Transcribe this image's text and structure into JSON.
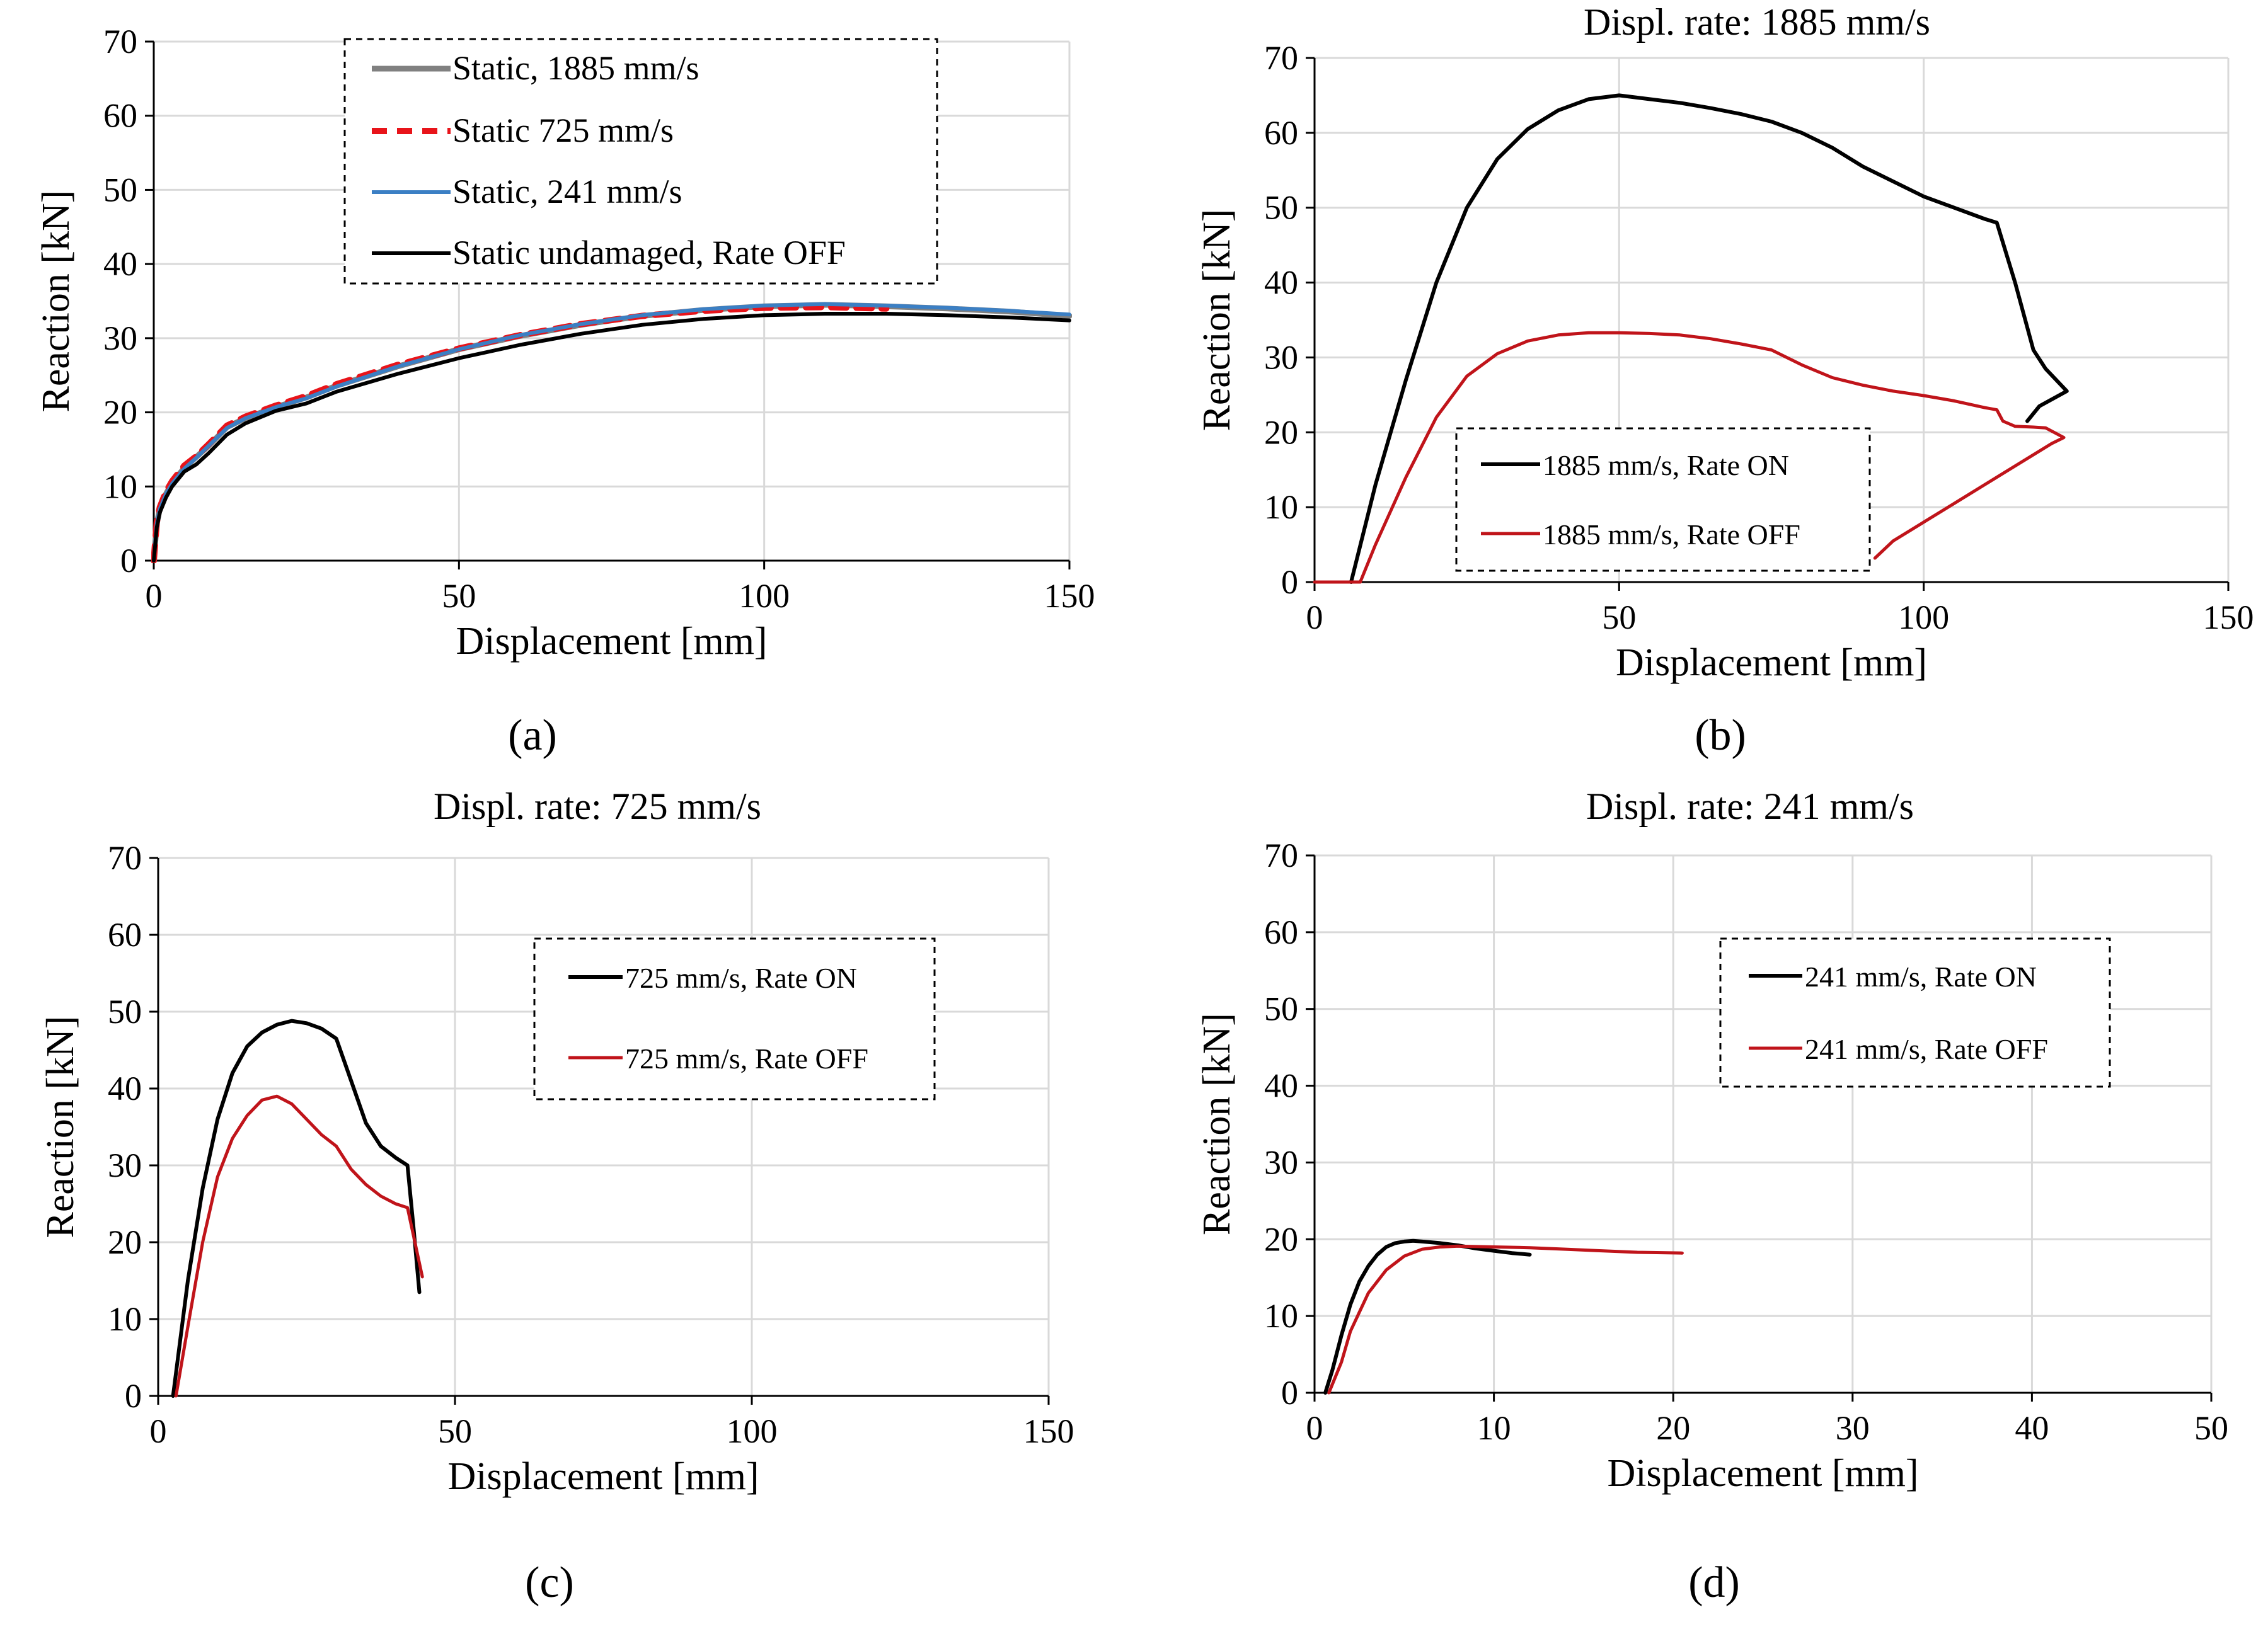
{
  "chart_data": [
    {
      "id": "a",
      "type": "line",
      "caption": "(a)",
      "title": "",
      "xlabel": "Displacement  [mm]",
      "ylabel": "Reaction [kN]",
      "xlim": [
        0,
        150
      ],
      "ylim": [
        0,
        70
      ],
      "xticks": [
        "0",
        "50",
        "100",
        "150"
      ],
      "yticks": [
        "0",
        "10",
        "20",
        "30",
        "40",
        "50",
        "60",
        "70"
      ],
      "grid": true,
      "legend_position": "top-center",
      "series": [
        {
          "name": "Static, 1885 mm/s",
          "color": "#808080",
          "dash": "",
          "width": 9,
          "x": [
            0,
            0.5,
            1,
            2,
            3,
            5,
            7,
            9,
            12,
            15,
            20,
            25,
            30,
            40,
            50,
            60,
            70,
            80,
            90,
            100,
            110,
            120,
            130,
            140,
            150
          ],
          "y": [
            0,
            5,
            7,
            9,
            10.5,
            12.5,
            14,
            15.5,
            18,
            19.2,
            20.7,
            22,
            23.6,
            26.2,
            28.5,
            30.3,
            31.8,
            33,
            33.8,
            34.3,
            34.5,
            34.3,
            34,
            33.6,
            33
          ]
        },
        {
          "name": "Static 725 mm/s",
          "color": "#e8141a",
          "dash": "24,16",
          "width": 10,
          "x": [
            0,
            0.5,
            1,
            2,
            3,
            5,
            7,
            9,
            12,
            15,
            20,
            25,
            30,
            40,
            50,
            60,
            70,
            80,
            90,
            100,
            110,
            120
          ],
          "y": [
            0,
            5.2,
            7.2,
            9.3,
            10.7,
            12.8,
            14.1,
            15.7,
            18.2,
            19.4,
            20.9,
            22.2,
            23.8,
            26.4,
            28.6,
            30.4,
            31.9,
            33,
            33.7,
            34.1,
            34.2,
            34
          ]
        },
        {
          "name": "Static, 241 mm/s",
          "color": "#3b7fc4",
          "dash": "",
          "width": 6,
          "x": [
            0,
            0.5,
            1,
            2,
            3,
            5,
            7,
            9,
            12,
            15,
            20,
            25,
            30,
            40,
            50,
            60,
            70,
            80,
            90,
            100,
            110,
            120,
            130,
            140,
            150
          ],
          "y": [
            0,
            5,
            7,
            9,
            10.4,
            12.4,
            13.9,
            15.5,
            17.9,
            19.2,
            20.7,
            21.9,
            23.5,
            26.2,
            28.5,
            30.4,
            31.9,
            33.1,
            33.9,
            34.4,
            34.6,
            34.4,
            34.1,
            33.7,
            33.2
          ]
        },
        {
          "name": "Static undamaged, Rate OFF",
          "color": "#000000",
          "dash": "",
          "width": 6,
          "x": [
            0,
            0.5,
            1,
            2,
            3,
            5,
            7,
            9,
            12,
            15,
            20,
            25,
            30,
            40,
            50,
            60,
            70,
            80,
            90,
            100,
            110,
            120,
            130,
            140,
            150
          ],
          "y": [
            0,
            4.5,
            6.5,
            8.5,
            10,
            12,
            13,
            14.5,
            17,
            18.5,
            20.2,
            21.2,
            22.8,
            25.2,
            27.3,
            29.1,
            30.6,
            31.8,
            32.6,
            33.1,
            33.3,
            33.3,
            33.1,
            32.8,
            32.4
          ]
        }
      ]
    },
    {
      "id": "b",
      "type": "line",
      "caption": "(b)",
      "title": "Displ. rate: 1885 mm/s",
      "xlabel": "Displacement  [mm]",
      "ylabel": "Reaction  [kN]",
      "xlim": [
        0,
        150
      ],
      "ylim": [
        0,
        70
      ],
      "xticks": [
        "0",
        "50",
        "100",
        "150"
      ],
      "yticks": [
        "0",
        "10",
        "20",
        "30",
        "40",
        "50",
        "60",
        "70"
      ],
      "grid": true,
      "legend_position": "bottom-center",
      "series": [
        {
          "name": "1885 mm/s, Rate ON",
          "color": "#000000",
          "dash": "",
          "width": 6,
          "x": [
            6,
            10,
            15,
            20,
            25,
            30,
            35,
            40,
            45,
            50,
            55,
            60,
            65,
            70,
            75,
            80,
            85,
            90,
            95,
            100,
            105,
            110,
            112,
            115,
            118,
            120,
            123.5,
            119,
            117
          ],
          "y": [
            0,
            13,
            27,
            40,
            50,
            56.5,
            60.5,
            63,
            64.5,
            65,
            64.5,
            64,
            63.3,
            62.5,
            61.5,
            60,
            58,
            55.5,
            53.5,
            51.5,
            50,
            48.5,
            48,
            40,
            31,
            28.5,
            25.5,
            23.5,
            21.5
          ]
        },
        {
          "name": "1885 mm/s, Rate OFF",
          "color": "#c0141a",
          "dash": "",
          "width": 5,
          "x": [
            0,
            7.5,
            10,
            15,
            20,
            25,
            30,
            35,
            40,
            45,
            50,
            55,
            60,
            65,
            70,
            75,
            80,
            85,
            90,
            95,
            100,
            105,
            110,
            112,
            113,
            115,
            118,
            120,
            123,
            121,
            115,
            110,
            105,
            100,
            95,
            92
          ],
          "y": [
            0,
            0,
            5,
            14,
            22,
            27.5,
            30.5,
            32.2,
            33,
            33.3,
            33.3,
            33.2,
            33,
            32.5,
            31.8,
            31,
            29,
            27.3,
            26.3,
            25.5,
            24.9,
            24.2,
            23.3,
            23,
            21.5,
            20.8,
            20.7,
            20.6,
            19.3,
            18.5,
            15.5,
            13,
            10.5,
            8,
            5.5,
            3.2
          ]
        }
      ]
    },
    {
      "id": "c",
      "type": "line",
      "caption": "(c)",
      "title": "Displ. rate: 725 mm/s",
      "xlabel": "Displacement  [mm]",
      "ylabel": "Reaction  [kN]",
      "xlim": [
        0,
        150
      ],
      "ylim": [
        0,
        70
      ],
      "xticks": [
        "0",
        "50",
        "100",
        "150"
      ],
      "yticks": [
        "0",
        "10",
        "20",
        "30",
        "40",
        "50",
        "60",
        "70"
      ],
      "grid": true,
      "legend_position": "top-right",
      "series": [
        {
          "name": "725 mm/s, Rate ON",
          "color": "#000000",
          "dash": "",
          "width": 6,
          "x": [
            2.5,
            5,
            7.5,
            10,
            12.5,
            15,
            17.5,
            20,
            22.5,
            25,
            27.5,
            30,
            32.5,
            35,
            37.5,
            40,
            42,
            43,
            44
          ],
          "y": [
            0,
            15,
            27,
            36,
            42,
            45.5,
            47.3,
            48.3,
            48.8,
            48.5,
            47.8,
            46.5,
            41,
            35.5,
            32.5,
            31,
            30,
            22,
            13.5
          ]
        },
        {
          "name": "725 mm/s, Rate OFF",
          "color": "#c0141a",
          "dash": "",
          "width": 5,
          "x": [
            3,
            5,
            7.5,
            10,
            12.5,
            15,
            17.5,
            20,
            22.5,
            25,
            27.5,
            30,
            32.5,
            35,
            37.5,
            40,
            42,
            44.5
          ],
          "y": [
            0,
            9,
            20,
            28.5,
            33.5,
            36.5,
            38.5,
            39,
            38,
            36,
            34,
            32.5,
            29.5,
            27.5,
            26,
            25,
            24.5,
            15.5
          ]
        }
      ]
    },
    {
      "id": "d",
      "type": "line",
      "caption": "(d)",
      "title": "Displ. rate: 241 mm/s",
      "xlabel": "Displacement  [mm]",
      "ylabel": "Reaction  [kN]",
      "xlim": [
        0,
        50
      ],
      "ylim": [
        0,
        70
      ],
      "xticks": [
        "0",
        "10",
        "20",
        "30",
        "40",
        "50"
      ],
      "yticks": [
        "0",
        "10",
        "20",
        "30",
        "40",
        "50",
        "60",
        "70"
      ],
      "grid": true,
      "legend_position": "top-right",
      "series": [
        {
          "name": "241 mm/s, Rate ON",
          "color": "#000000",
          "dash": "",
          "width": 6,
          "x": [
            0.6,
            1,
            1.5,
            2,
            2.5,
            3,
            3.5,
            4,
            4.5,
            5,
            5.5,
            6,
            7,
            8,
            9,
            10,
            11,
            12
          ],
          "y": [
            0,
            3,
            7.5,
            11.5,
            14.5,
            16.5,
            18,
            19,
            19.5,
            19.7,
            19.8,
            19.7,
            19.5,
            19.2,
            18.8,
            18.5,
            18.2,
            18
          ]
        },
        {
          "name": "241 mm/s, Rate OFF",
          "color": "#c0141a",
          "dash": "",
          "width": 5,
          "x": [
            0.8,
            1.5,
            2,
            3,
            4,
            5,
            6,
            7,
            8,
            10,
            12,
            14,
            16,
            18,
            20.5
          ],
          "y": [
            0,
            4,
            8,
            13,
            16,
            17.8,
            18.7,
            19,
            19.1,
            19,
            18.9,
            18.7,
            18.5,
            18.3,
            18.2
          ]
        }
      ]
    }
  ]
}
